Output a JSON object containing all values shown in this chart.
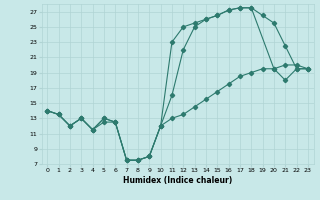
{
  "xlabel": "Humidex (Indice chaleur)",
  "bg_color": "#c8e8e8",
  "grid_color": "#b0d4d4",
  "line_color": "#2d7a6e",
  "xlim": [
    -0.5,
    23.5
  ],
  "ylim": [
    7,
    28
  ],
  "xticks": [
    0,
    1,
    2,
    3,
    4,
    5,
    6,
    7,
    8,
    9,
    10,
    11,
    12,
    13,
    14,
    15,
    16,
    17,
    18,
    19,
    20,
    21,
    22,
    23
  ],
  "yticks": [
    7,
    9,
    11,
    13,
    15,
    17,
    19,
    21,
    23,
    25,
    27
  ],
  "line1_x": [
    0,
    1,
    2,
    3,
    4,
    5,
    6,
    7,
    8,
    9,
    10,
    11,
    12,
    13,
    14,
    15,
    16,
    17,
    18,
    20,
    21,
    22,
    23
  ],
  "line1_y": [
    14,
    13.5,
    12,
    13,
    11.5,
    13,
    12.5,
    7.5,
    7.5,
    8.0,
    12,
    16,
    22,
    25,
    26,
    26.5,
    27.2,
    27.5,
    27.5,
    19.5,
    20,
    20,
    19.5
  ],
  "line2_x": [
    0,
    1,
    2,
    3,
    4,
    5,
    6,
    7,
    8,
    9,
    10,
    11,
    12,
    13,
    14,
    15,
    16,
    17,
    18,
    19,
    20,
    21,
    22,
    23
  ],
  "line2_y": [
    14,
    13.5,
    12,
    13,
    11.5,
    13,
    12.5,
    7.5,
    7.5,
    8.0,
    12,
    23,
    25,
    25.5,
    26,
    26.5,
    27.2,
    27.5,
    27.5,
    26.5,
    25.5,
    22.5,
    19.5,
    19.5
  ],
  "line3_x": [
    0,
    1,
    2,
    3,
    4,
    5,
    6,
    7,
    8,
    9,
    10,
    11,
    12,
    13,
    14,
    15,
    16,
    17,
    18,
    19,
    20,
    21,
    22,
    23
  ],
  "line3_y": [
    14,
    13.5,
    12,
    13,
    11.5,
    12.5,
    12.5,
    7.5,
    7.5,
    8.0,
    12,
    13,
    13.5,
    14.5,
    15.5,
    16.5,
    17.5,
    18.5,
    19,
    19.5,
    19.5,
    18,
    19.5,
    19.5
  ]
}
